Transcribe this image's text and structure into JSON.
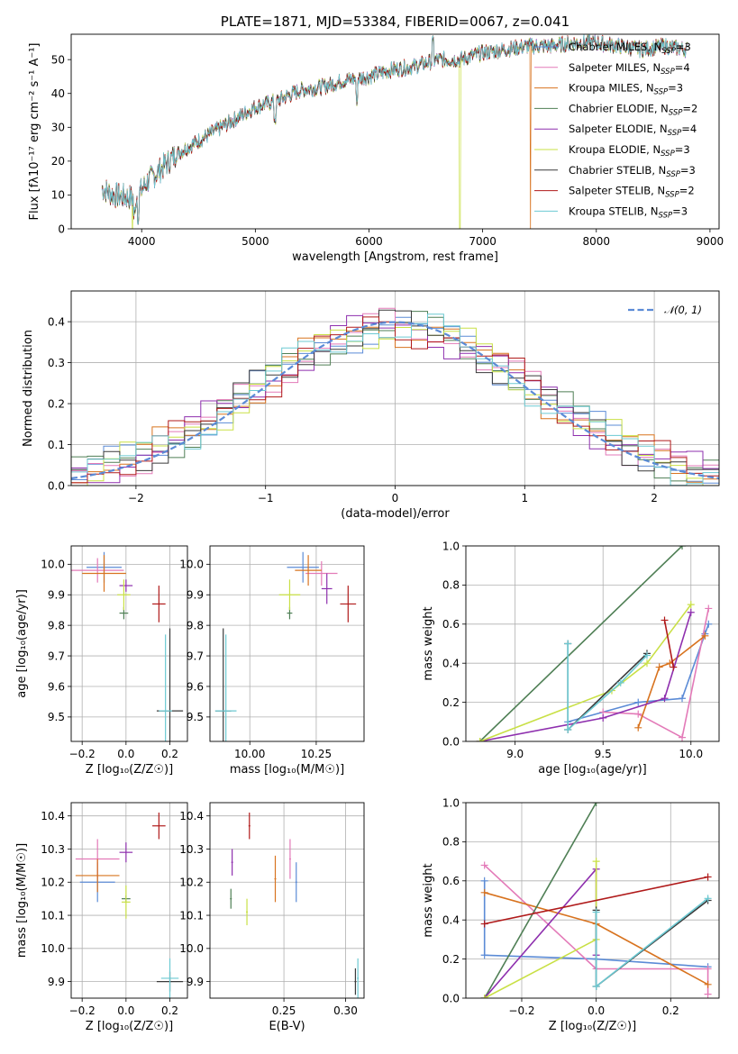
{
  "colors": {
    "Chabrier MILES": "#5b8bd6",
    "Salpeter MILES": "#e37ab8",
    "Kroupa MILES": "#d8731f",
    "Chabrier ELODIE": "#4f7f55",
    "Salpeter ELODIE": "#8e2fae",
    "Kroupa ELODIE": "#c9e046",
    "Chabrier STELIB": "#3a3a3a",
    "Salpeter STELIB": "#b01a1a",
    "Kroupa STELIB": "#6cc9d2",
    "normal": "#5b8bd6"
  },
  "chart_data": [
    {
      "id": "spectrum",
      "type": "line",
      "title": "PLATE=1871, MJD=53384, FIBERID=0067, z=0.041",
      "xlabel": "wavelength [Angstrom, rest frame]",
      "ylabel": "Flux [fλ10⁻¹⁷ erg cm⁻² s⁻¹ A⁻¹]",
      "xlim": [
        3380,
        9080
      ],
      "ylim": [
        0,
        57.5
      ],
      "xticks": [
        4000,
        5000,
        6000,
        7000,
        8000,
        9000
      ],
      "yticks": [
        0,
        10,
        20,
        30,
        40,
        50
      ],
      "legend": "top-right",
      "continuum": {
        "x": [
          3650,
          3750,
          3850,
          3950,
          4050,
          4150,
          4300,
          4400,
          4600,
          4800,
          5000,
          5200,
          5400,
          5600,
          5800,
          6000,
          6200,
          6400,
          6600,
          6800,
          7000,
          7200,
          7400,
          7600,
          7800,
          8000,
          8200,
          8400,
          8600,
          8800
        ],
        "y": [
          12,
          10,
          9.5,
          9,
          14,
          17,
          22,
          24,
          28,
          32,
          36,
          38,
          41,
          42,
          44,
          45,
          47,
          48,
          50,
          50,
          52,
          53,
          54,
          54,
          55,
          55,
          54,
          53,
          54,
          53
        ]
      },
      "series": [
        {
          "name": "Chabrier MILES",
          "nssp": 3
        },
        {
          "name": "Salpeter MILES",
          "nssp": 4
        },
        {
          "name": "Kroupa MILES",
          "nssp": 3
        },
        {
          "name": "Chabrier ELODIE",
          "nssp": 2
        },
        {
          "name": "Salpeter ELODIE",
          "nssp": 4
        },
        {
          "name": "Kroupa ELODIE",
          "nssp": 3
        },
        {
          "name": "Chabrier STELIB",
          "nssp": 3
        },
        {
          "name": "Salpeter STELIB",
          "nssp": 2
        },
        {
          "name": "Kroupa STELIB",
          "nssp": 3
        }
      ],
      "dropouts": [
        {
          "series": "Kroupa ELODIE",
          "x": 3920
        },
        {
          "series": "Kroupa ELODIE",
          "x": 6800
        },
        {
          "series": "Kroupa MILES",
          "x": 7420
        }
      ]
    },
    {
      "id": "residuals",
      "type": "bar",
      "xlabel": "(data-model)/error",
      "ylabel": "Normed distribution",
      "xlim": [
        -2.5,
        2.5
      ],
      "ylim": [
        0,
        0.475
      ],
      "xticks": [
        -2,
        -1,
        0,
        1,
        2
      ],
      "yticks": [
        0.0,
        0.1,
        0.2,
        0.3,
        0.4
      ],
      "bin_width": 0.125,
      "legend": "top-right",
      "legend_label": "𝒩(0, 1)",
      "reference": {
        "name": "normal",
        "mean": 0,
        "sigma": 1
      }
    },
    {
      "id": "age_vs_z",
      "type": "scatter",
      "xlabel": "Z [log₁₀(Z/Z☉)]",
      "ylabel": "age  [log₁₀(age/yr)]",
      "xlim": [
        -0.25,
        0.28
      ],
      "ylim": [
        9.42,
        10.06
      ],
      "xticks": [
        -0.2,
        0.0,
        0.2
      ],
      "yticks": [
        9.5,
        9.6,
        9.7,
        9.8,
        9.9,
        10.0
      ],
      "points": [
        {
          "series": "Chabrier MILES",
          "x": -0.1,
          "y": 9.99,
          "xerr": 0.08,
          "yerr": 0.05
        },
        {
          "series": "Salpeter MILES",
          "x": -0.13,
          "y": 9.98,
          "xerr": 0.12,
          "yerr": 0.04
        },
        {
          "series": "Kroupa MILES",
          "x": -0.1,
          "y": 9.97,
          "xerr": 0.1,
          "yerr": 0.06
        },
        {
          "series": "Chabrier ELODIE",
          "x": -0.01,
          "y": 9.84,
          "xerr": 0.02,
          "yerr": 0.02
        },
        {
          "series": "Salpeter ELODIE",
          "x": 0.0,
          "y": 9.93,
          "xerr": 0.03,
          "yerr": 0.02
        },
        {
          "series": "Kroupa ELODIE",
          "x": -0.01,
          "y": 9.9,
          "xerr": 0.03,
          "yerr": 0.05
        },
        {
          "series": "Chabrier STELIB",
          "x": 0.2,
          "y": 9.52,
          "xerr": 0.06,
          "yerr": 0.27
        },
        {
          "series": "Salpeter STELIB",
          "x": 0.15,
          "y": 9.87,
          "xerr": 0.03,
          "yerr": 0.06
        },
        {
          "series": "Kroupa STELIB",
          "x": 0.18,
          "y": 9.52,
          "xerr": 0.03,
          "yerr": 0.25
        }
      ]
    },
    {
      "id": "age_vs_mass",
      "type": "scatter",
      "xlabel": "mass [log₁₀(M/M☉)]",
      "xlim": [
        9.85,
        10.43
      ],
      "ylim": [
        9.42,
        10.06
      ],
      "xticks": [
        10.0,
        10.25
      ],
      "yticks": [
        9.5,
        9.6,
        9.7,
        9.8,
        9.9,
        10.0
      ],
      "points": [
        {
          "series": "Chabrier MILES",
          "x": 10.2,
          "y": 9.99,
          "xerr": 0.06,
          "yerr": 0.05
        },
        {
          "series": "Salpeter MILES",
          "x": 10.27,
          "y": 9.97,
          "xerr": 0.06,
          "yerr": 0.04
        },
        {
          "series": "Kroupa MILES",
          "x": 10.22,
          "y": 9.98,
          "xerr": 0.05,
          "yerr": 0.05
        },
        {
          "series": "Chabrier ELODIE",
          "x": 10.15,
          "y": 9.84,
          "xerr": 0.01,
          "yerr": 0.02
        },
        {
          "series": "Salpeter ELODIE",
          "x": 10.29,
          "y": 9.92,
          "xerr": 0.02,
          "yerr": 0.05
        },
        {
          "series": "Kroupa ELODIE",
          "x": 10.15,
          "y": 9.9,
          "xerr": 0.04,
          "yerr": 0.05
        },
        {
          "series": "Chabrier STELIB",
          "x": 9.9,
          "y": 9.52,
          "xerr": 0.03,
          "yerr": 0.27
        },
        {
          "series": "Salpeter STELIB",
          "x": 10.37,
          "y": 9.87,
          "xerr": 0.03,
          "yerr": 0.06
        },
        {
          "series": "Kroupa STELIB",
          "x": 9.91,
          "y": 9.52,
          "xerr": 0.04,
          "yerr": 0.25
        }
      ]
    },
    {
      "id": "weight_vs_age",
      "type": "line",
      "xlabel": "age  [log₁₀(age/yr)]",
      "ylabel": "mass weight",
      "xlim": [
        8.72,
        10.16
      ],
      "ylim": [
        0,
        1.0
      ],
      "xticks": [
        9.0,
        9.5,
        10.0
      ],
      "yticks": [
        0.0,
        0.2,
        0.4,
        0.6,
        0.8,
        1.0
      ],
      "series": [
        {
          "name": "Chabrier MILES",
          "x": [
            9.3,
            9.7,
            9.95,
            10.08,
            10.1
          ],
          "y": [
            0.1,
            0.2,
            0.22,
            0.55,
            0.6
          ]
        },
        {
          "name": "Salpeter MILES",
          "x": [
            9.5,
            9.7,
            9.95,
            10.1
          ],
          "y": [
            0.15,
            0.14,
            0.02,
            0.68
          ]
        },
        {
          "name": "Kroupa MILES",
          "x": [
            9.7,
            9.82,
            9.88,
            10.08
          ],
          "y": [
            0.07,
            0.38,
            0.4,
            0.54
          ]
        },
        {
          "name": "Chabrier ELODIE",
          "x": [
            8.8,
            9.95
          ],
          "y": [
            0.0,
            1.0
          ]
        },
        {
          "name": "Salpeter ELODIE",
          "x": [
            8.8,
            9.5,
            9.85,
            10.0
          ],
          "y": [
            0.0,
            0.12,
            0.22,
            0.66
          ]
        },
        {
          "name": "Kroupa ELODIE",
          "x": [
            8.8,
            9.55,
            9.75,
            10.0
          ],
          "y": [
            0.0,
            0.26,
            0.4,
            0.7
          ]
        },
        {
          "name": "Chabrier STELIB",
          "x": [
            9.3,
            9.3,
            9.75
          ],
          "y": [
            0.5,
            0.06,
            0.45
          ]
        },
        {
          "name": "Salpeter STELIB",
          "x": [
            9.85,
            9.9
          ],
          "y": [
            0.62,
            0.38
          ]
        },
        {
          "name": "Kroupa STELIB",
          "x": [
            9.3,
            9.3,
            9.6,
            9.75
          ],
          "y": [
            0.5,
            0.06,
            0.3,
            0.44
          ]
        }
      ]
    },
    {
      "id": "mass_vs_z",
      "type": "scatter",
      "xlabel": "Z [log₁₀(Z/Z☉)]",
      "ylabel": "mass [log₁₀(M/M☉)]",
      "xlim": [
        -0.25,
        0.28
      ],
      "ylim": [
        9.85,
        10.44
      ],
      "xticks": [
        -0.2,
        0.0,
        0.2
      ],
      "yticks": [
        9.9,
        10.0,
        10.1,
        10.2,
        10.3,
        10.4
      ],
      "points": [
        {
          "series": "Chabrier MILES",
          "x": -0.13,
          "y": 10.2,
          "xerr": 0.08,
          "yerr": 0.06
        },
        {
          "series": "Salpeter MILES",
          "x": -0.13,
          "y": 10.27,
          "xerr": 0.1,
          "yerr": 0.06
        },
        {
          "series": "Kroupa MILES",
          "x": -0.13,
          "y": 10.22,
          "xerr": 0.1,
          "yerr": 0.05
        },
        {
          "series": "Chabrier ELODIE",
          "x": 0.0,
          "y": 10.15,
          "xerr": 0.02,
          "yerr": 0.01
        },
        {
          "series": "Salpeter ELODIE",
          "x": 0.0,
          "y": 10.29,
          "xerr": 0.03,
          "yerr": 0.03
        },
        {
          "series": "Kroupa ELODIE",
          "x": 0.0,
          "y": 10.14,
          "xerr": 0.02,
          "yerr": 0.05
        },
        {
          "series": "Chabrier STELIB",
          "x": 0.2,
          "y": 9.9,
          "xerr": 0.06,
          "yerr": 0.03
        },
        {
          "series": "Salpeter STELIB",
          "x": 0.15,
          "y": 10.37,
          "xerr": 0.03,
          "yerr": 0.04
        },
        {
          "series": "Kroupa STELIB",
          "x": 0.2,
          "y": 9.91,
          "xerr": 0.04,
          "yerr": 0.06
        }
      ]
    },
    {
      "id": "mass_vs_ebv",
      "type": "scatter",
      "xlabel": "E(B-V)",
      "xlim": [
        0.19,
        0.315
      ],
      "ylim": [
        9.85,
        10.44
      ],
      "xticks": [
        0.25,
        0.3
      ],
      "xticklabels": [
        "0.25",
        "0.30"
      ],
      "yticks": [
        9.9,
        10.0,
        10.1,
        10.2,
        10.3,
        10.4
      ],
      "points": [
        {
          "series": "Chabrier MILES",
          "x": 0.26,
          "y": 10.2,
          "yerr": 0.06
        },
        {
          "series": "Salpeter MILES",
          "x": 0.255,
          "y": 10.27,
          "yerr": 0.06
        },
        {
          "series": "Kroupa MILES",
          "x": 0.243,
          "y": 10.21,
          "yerr": 0.07
        },
        {
          "series": "Chabrier ELODIE",
          "x": 0.207,
          "y": 10.15,
          "yerr": 0.03
        },
        {
          "series": "Salpeter ELODIE",
          "x": 0.208,
          "y": 10.26,
          "yerr": 0.04
        },
        {
          "series": "Kroupa ELODIE",
          "x": 0.22,
          "y": 10.11,
          "yerr": 0.04
        },
        {
          "series": "Chabrier STELIB",
          "x": 0.308,
          "y": 9.9,
          "yerr": 0.04
        },
        {
          "series": "Salpeter STELIB",
          "x": 0.222,
          "y": 10.37,
          "yerr": 0.04
        },
        {
          "series": "Kroupa STELIB",
          "x": 0.31,
          "y": 9.91,
          "yerr": 0.06
        }
      ]
    },
    {
      "id": "weight_vs_z",
      "type": "line",
      "xlabel": "Z [log₁₀(Z/Z☉)]",
      "ylabel": "mass weight",
      "xlim": [
        -0.35,
        0.33
      ],
      "ylim": [
        0,
        1.0
      ],
      "xticks": [
        -0.2,
        0.0,
        0.2
      ],
      "yticks": [
        0.0,
        0.2,
        0.4,
        0.6,
        0.8,
        1.0
      ],
      "series": [
        {
          "name": "Chabrier MILES",
          "x": [
            -0.3,
            -0.3,
            0.0,
            0.3
          ],
          "y": [
            0.6,
            0.22,
            0.2,
            0.16
          ]
        },
        {
          "name": "Salpeter MILES",
          "x": [
            -0.3,
            0.0,
            0.3,
            0.3
          ],
          "y": [
            0.68,
            0.15,
            0.15,
            0.02
          ]
        },
        {
          "name": "Kroupa MILES",
          "x": [
            -0.3,
            0.0,
            0.3
          ],
          "y": [
            0.54,
            0.38,
            0.07
          ]
        },
        {
          "name": "Chabrier ELODIE",
          "x": [
            -0.3,
            0.0
          ],
          "y": [
            0.0,
            1.0
          ]
        },
        {
          "name": "Salpeter ELODIE",
          "x": [
            -0.3,
            0.0,
            0.0
          ],
          "y": [
            0.0,
            0.66,
            0.22
          ]
        },
        {
          "name": "Kroupa ELODIE",
          "x": [
            -0.3,
            0.0,
            0.0
          ],
          "y": [
            0.0,
            0.3,
            0.7
          ]
        },
        {
          "name": "Chabrier STELIB",
          "x": [
            0.0,
            0.0,
            0.3
          ],
          "y": [
            0.45,
            0.06,
            0.5
          ]
        },
        {
          "name": "Salpeter STELIB",
          "x": [
            -0.3,
            0.3
          ],
          "y": [
            0.38,
            0.62
          ]
        },
        {
          "name": "Kroupa STELIB",
          "x": [
            0.0,
            0.0,
            0.3
          ],
          "y": [
            0.44,
            0.06,
            0.51
          ]
        }
      ]
    }
  ]
}
